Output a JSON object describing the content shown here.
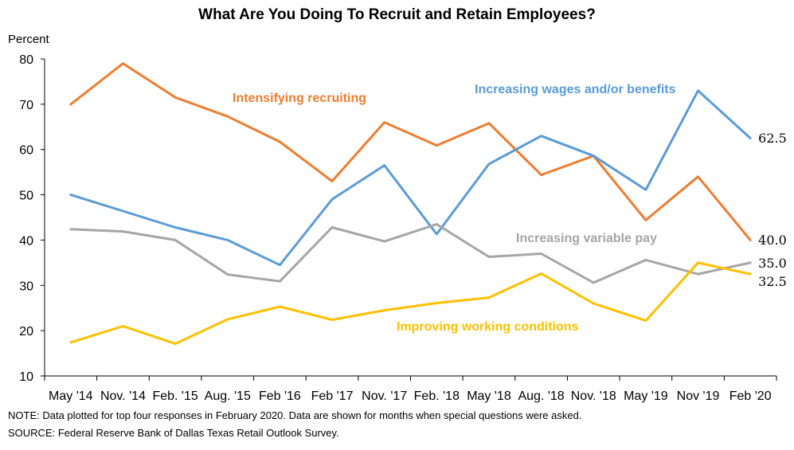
{
  "chart_data": {
    "type": "line",
    "title": "What Are You Doing To Recruit and Retain Employees?",
    "ylabel": "Percent",
    "xlabel": "",
    "ylim": [
      10,
      80
    ],
    "yticks": [
      10,
      20,
      30,
      40,
      50,
      60,
      70,
      80
    ],
    "categories": [
      "May '14",
      "Nov. '14",
      "Feb. '15",
      "Aug. '15",
      "Feb '16",
      "Feb '17",
      "Nov. '17",
      "Feb. '18",
      "May '18",
      "Aug. '18",
      "Nov. '18",
      "May '19",
      "Nov '19",
      "Feb '20"
    ],
    "grid": false,
    "legend": "none",
    "series": [
      {
        "name": "Intensifying recruiting",
        "color": "#ED7D31",
        "values": [
          70.0,
          79.0,
          71.5,
          67.3,
          61.7,
          53.0,
          66.0,
          60.9,
          65.8,
          54.4,
          58.6,
          44.4,
          54.0,
          40.0
        ],
        "end_label": ""
      },
      {
        "name": "Increasing wages and/or benefits",
        "color": "#5B9BD5",
        "values": [
          50.0,
          46.4,
          42.8,
          40.0,
          34.5,
          49.0,
          56.5,
          41.3,
          56.8,
          63.0,
          58.6,
          51.1,
          73.0,
          62.5
        ],
        "end_label": "62.5"
      },
      {
        "name": "Increasing variable pay",
        "color": "#A5A5A5",
        "values": [
          42.4,
          41.9,
          40.0,
          32.4,
          30.9,
          42.8,
          39.7,
          43.5,
          36.3,
          37.0,
          30.6,
          35.6,
          32.5,
          35.0
        ],
        "end_label": "35.0"
      },
      {
        "name": "Improving working conditions",
        "color": "#FFC000",
        "values": [
          17.4,
          21.0,
          17.1,
          22.5,
          25.3,
          22.4,
          24.5,
          26.1,
          27.3,
          32.6,
          26.0,
          22.2,
          35.0,
          32.5
        ],
        "end_label": "32.5"
      }
    ],
    "extra_end_labels": [
      "40.0"
    ],
    "note": "NOTE: Data plotted for top four responses in February 2020. Data are shown for months when special questions were asked.",
    "source": "SOURCE: Federal Reserve Bank of Dallas Texas Retail Outlook Survey."
  }
}
